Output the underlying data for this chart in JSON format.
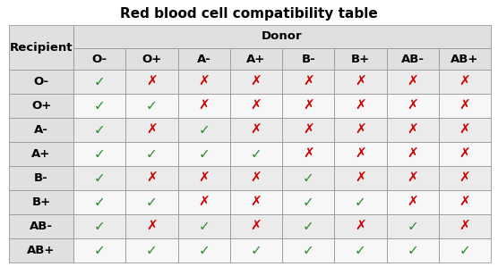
{
  "title": "Red blood cell compatibility table",
  "donor_header": "Donor",
  "recipient_header": "Recipient",
  "blood_types": [
    "O-",
    "O+",
    "A-",
    "A+",
    "B-",
    "B+",
    "AB-",
    "AB+"
  ],
  "compatibility": [
    [
      1,
      0,
      0,
      0,
      0,
      0,
      0,
      0
    ],
    [
      1,
      1,
      0,
      0,
      0,
      0,
      0,
      0
    ],
    [
      1,
      0,
      1,
      0,
      0,
      0,
      0,
      0
    ],
    [
      1,
      1,
      1,
      1,
      0,
      0,
      0,
      0
    ],
    [
      1,
      0,
      0,
      0,
      1,
      0,
      0,
      0
    ],
    [
      1,
      1,
      0,
      0,
      1,
      1,
      0,
      0
    ],
    [
      1,
      0,
      1,
      0,
      1,
      0,
      1,
      0
    ],
    [
      1,
      1,
      1,
      1,
      1,
      1,
      1,
      1
    ]
  ],
  "check_color": "#2e8b2e",
  "cross_color": "#cc0000",
  "header_bg": "#e0e0e0",
  "row_bg_even": "#ebebeb",
  "row_bg_odd": "#f7f7f7",
  "border_color": "#999999",
  "title_fontsize": 11,
  "header_fontsize": 9.5,
  "cell_fontsize": 11,
  "fig_width": 5.56,
  "fig_height": 3.08,
  "dpi": 100
}
